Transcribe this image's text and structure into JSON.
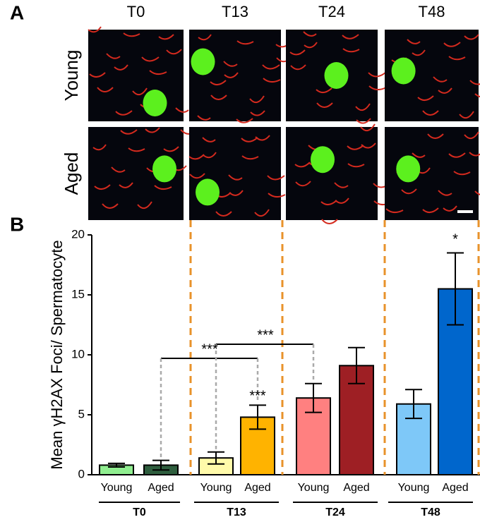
{
  "panel_a": {
    "label": "A",
    "columns": [
      "T0",
      "T13",
      "T24",
      "T48"
    ],
    "rows": [
      "Young",
      "Aged"
    ]
  },
  "chart_data": {
    "type": "bar",
    "panel_label": "B",
    "y_label": "Mean γH2AX Foci/ Spermatocyte",
    "categories": [
      "Young",
      "Aged",
      "Young",
      "Aged",
      "Young",
      "Aged",
      "Young",
      "Aged"
    ],
    "groups": [
      "T0",
      "T13",
      "T24",
      "T48"
    ],
    "values": [
      0.8,
      0.8,
      1.4,
      4.8,
      6.4,
      9.1,
      5.9,
      15.5
    ],
    "errors": [
      0.15,
      0.4,
      0.5,
      1.0,
      1.2,
      1.5,
      1.2,
      3.0
    ],
    "colors": [
      "#90ee90",
      "#2e5e3e",
      "#fffaaa",
      "#ffb300",
      "#ff8080",
      "#9e1f24",
      "#7ec8f8",
      "#0066cc"
    ],
    "annotations": [
      "***",
      "***",
      "***",
      "*"
    ],
    "ylim": [
      0,
      20
    ],
    "yticks": [
      0,
      5,
      10,
      15,
      20
    ]
  }
}
